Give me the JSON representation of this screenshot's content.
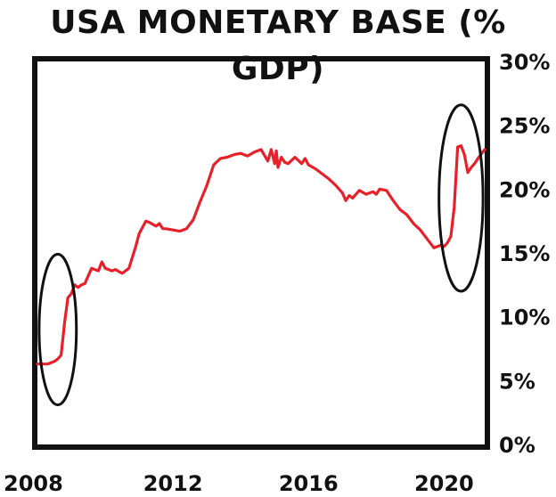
{
  "chart_data": {
    "type": "line",
    "title": "USA MONETARY BASE (% GDP)",
    "xlabel": "",
    "ylabel": "",
    "xlim": [
      2008.0,
      2021.2
    ],
    "ylim": [
      0,
      30
    ],
    "x_ticks": [
      2008,
      2012,
      2016,
      2020
    ],
    "x_tick_labels": [
      "2008",
      "2012",
      "2016",
      "2020"
    ],
    "y_ticks": [
      0,
      5,
      10,
      15,
      20,
      25,
      30
    ],
    "y_tick_labels": [
      "0%",
      "5%",
      "10%",
      "15%",
      "20%",
      "25%",
      "30%"
    ],
    "grid": false,
    "legend": "none",
    "colors": {
      "line": "#e8202a",
      "frame": "#111111",
      "annotation": "#111111"
    },
    "series": [
      {
        "x": [
          2008.0,
          2008.3,
          2008.5,
          2008.6,
          2008.7,
          2008.8,
          2008.9,
          2009.0,
          2009.1,
          2009.2,
          2009.3,
          2009.4,
          2009.6,
          2009.8,
          2009.9,
          2010.0,
          2010.2,
          2010.3,
          2010.5,
          2010.7,
          2010.9,
          2011.0,
          2011.2,
          2011.3,
          2011.5,
          2011.6,
          2011.7,
          2011.8,
          2012.0,
          2012.2,
          2012.4,
          2012.6,
          2012.8,
          2013.0,
          2013.2,
          2013.4,
          2013.6,
          2013.8,
          2014.0,
          2014.2,
          2014.4,
          2014.6,
          2014.8,
          2014.9,
          2015.0,
          2015.05,
          2015.1,
          2015.2,
          2015.3,
          2015.4,
          2015.6,
          2015.8,
          2015.9,
          2016.0,
          2016.2,
          2016.4,
          2016.6,
          2016.8,
          2017.0,
          2017.1,
          2017.2,
          2017.3,
          2017.5,
          2017.7,
          2017.9,
          2018.0,
          2018.1,
          2018.3,
          2018.5,
          2018.7,
          2018.9,
          2019.1,
          2019.3,
          2019.5,
          2019.7,
          2019.9,
          2020.0,
          2020.1,
          2020.2,
          2020.3,
          2020.4,
          2020.5,
          2020.6,
          2020.7,
          2020.8,
          2020.9,
          2021.0,
          2021.2
        ],
        "values": [
          6.3,
          6.3,
          6.5,
          6.7,
          7.0,
          9.5,
          11.5,
          11.8,
          12.5,
          12.3,
          12.5,
          12.6,
          13.8,
          13.6,
          14.3,
          13.8,
          13.6,
          13.7,
          13.4,
          13.8,
          15.5,
          16.5,
          17.5,
          17.4,
          17.1,
          17.3,
          16.9,
          16.9,
          16.8,
          16.7,
          16.9,
          17.6,
          19.0,
          20.3,
          21.9,
          22.4,
          22.5,
          22.7,
          22.8,
          22.6,
          22.9,
          23.1,
          22.2,
          23.1,
          22.0,
          23.0,
          21.7,
          22.5,
          22.1,
          22.0,
          22.5,
          22.0,
          22.4,
          21.9,
          21.6,
          21.2,
          20.8,
          20.3,
          19.7,
          19.1,
          19.5,
          19.3,
          19.9,
          19.6,
          19.8,
          19.6,
          20.0,
          19.9,
          19.1,
          18.4,
          18.0,
          17.3,
          16.8,
          16.1,
          15.4,
          15.6,
          15.5,
          15.8,
          16.3,
          18.6,
          23.3,
          23.4,
          22.7,
          21.3,
          21.7,
          22.0,
          22.4,
          23.1
        ]
      }
    ],
    "annotations": [
      {
        "shape": "ellipse",
        "cx": 2008.6,
        "cy": 9.0,
        "rx": 0.55,
        "ry": 5.9
      },
      {
        "shape": "ellipse",
        "cx": 2020.5,
        "cy": 19.3,
        "rx": 0.65,
        "ry": 7.3
      }
    ]
  }
}
